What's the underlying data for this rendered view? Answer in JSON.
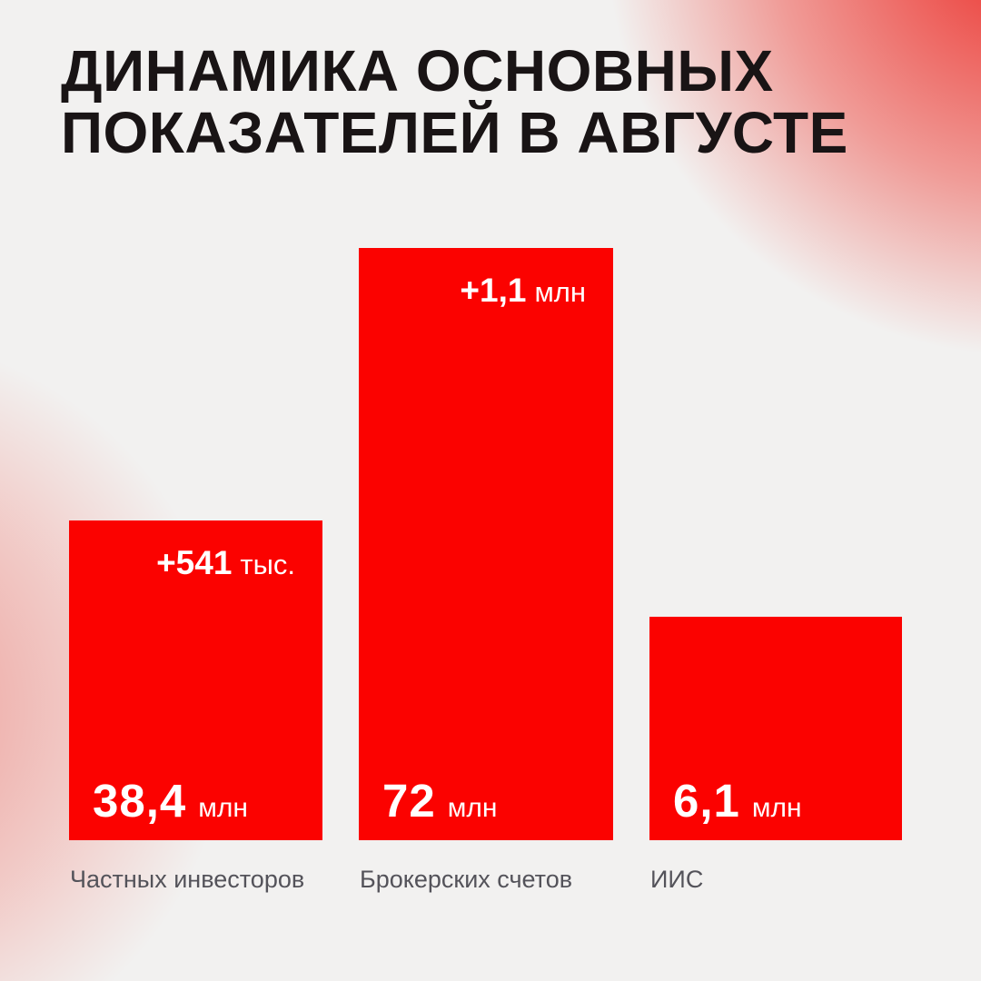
{
  "page": {
    "title_line1": "ДИНАМИКА ОСНОВНЫХ",
    "title_line2": "ПОКАЗАТЕЛЕЙ В АВГУСТЕ"
  },
  "colors": {
    "background": "#F2F1F0",
    "bar_red": "#FB0200",
    "title_text": "#191415",
    "category_label_gray": "#54535A",
    "bar_text_white": "#FFFFFF",
    "corner_gradient_red": "#EB2520"
  },
  "chart_data": {
    "type": "bar",
    "title": "ДИНАМИКА ОСНОВНЫХ ПОКАЗАТЕЛЕЙ В АВГУСТЕ",
    "categories": [
      "Частных инвесторов",
      "Брокерских счетов",
      "ИИС"
    ],
    "values": [
      38.4,
      72,
      6.1
    ],
    "values_unit": "млн",
    "deltas": [
      "+541 тыс.",
      "+1,1 млн",
      null
    ],
    "legend": "none",
    "grid": false,
    "axes_labels": "none",
    "bars": [
      {
        "value": "38,4",
        "unit": "млн",
        "delta_value": "+541",
        "delta_unit": "тыс.",
        "label": "Частных инвесторов"
      },
      {
        "value": "72",
        "unit": "млн",
        "delta_value": "+1,1",
        "delta_unit": "млн",
        "label": "Брокерских счетов"
      },
      {
        "value": "6,1",
        "unit": "млн",
        "delta_value": "",
        "delta_unit": "",
        "label": "ИИС"
      }
    ]
  }
}
